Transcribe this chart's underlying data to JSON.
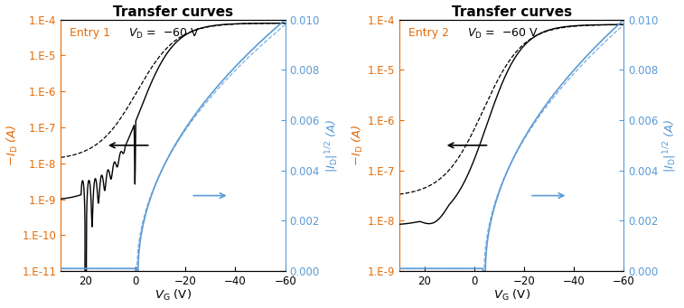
{
  "title": "Transfer curves",
  "xlabel": "$V_\\mathrm{G}$ (V)",
  "ylabel_left": "$-I_\\mathrm{D}$ (A)",
  "ylabel_right": "$|I_\\mathrm{D}|^{1/2}$ (A)",
  "colors": {
    "black": "#000000",
    "blue": "#5b9bd5",
    "orange": "#e36c09"
  },
  "panel1": {
    "label": "Entry 1",
    "ylim_log": [
      1e-11,
      0.0001
    ],
    "ylim_right": [
      0,
      0.01
    ],
    "vt_solid": -1.5,
    "vt_dashed": -0.5,
    "ioff_solid": 9e-10,
    "ioff_dashed": 1.2e-08,
    "ion": 8e-05,
    "sqrt_vt": -1.0,
    "sqrt_scale": 0.01
  },
  "panel2": {
    "label": "Entry 2",
    "ylim_log": [
      1e-09,
      0.0001
    ],
    "ylim_right": [
      0,
      0.01
    ],
    "vt_solid": -5.0,
    "vt_dashed": -3.5,
    "ioff_solid": 8e-09,
    "ioff_dashed": 3e-08,
    "ion": 8e-05,
    "sqrt_vt": -4.5,
    "sqrt_scale": 0.01
  }
}
